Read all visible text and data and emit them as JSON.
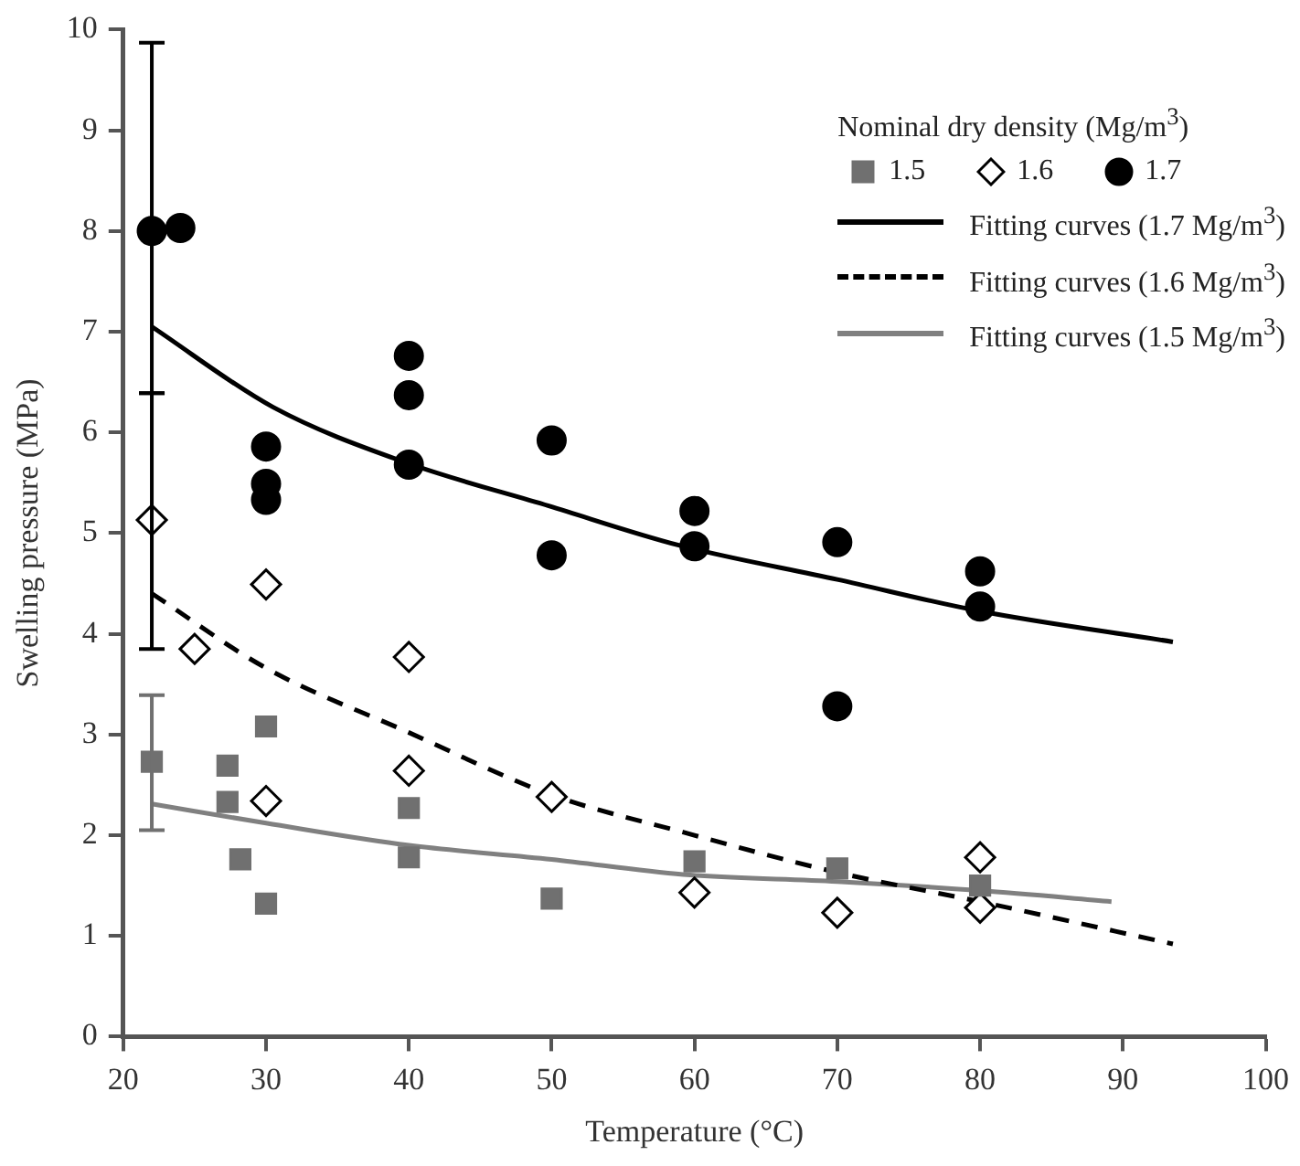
{
  "chart_data": {
    "type": "scatter",
    "xlabel": "Temperature (°C)",
    "ylabel": "Swelling pressure (MPa)",
    "legend_title": "Nominal dry density (Mg/m$^{3}$)",
    "legend": "top right",
    "grid": false,
    "xlim": [
      20,
      100
    ],
    "xticks": [
      20,
      30,
      40,
      50,
      60,
      70,
      80,
      90,
      100
    ],
    "ylim": [
      0,
      10
    ],
    "yticks": [
      0,
      1,
      2,
      3,
      4,
      5,
      6,
      7,
      8,
      9,
      10
    ],
    "series": [
      {
        "name": "1.5",
        "marker": "square",
        "color": "#707070",
        "x": [
          22,
          27.3,
          27.3,
          28.2,
          30,
          30,
          40,
          40,
          50,
          60,
          70,
          80
        ],
        "values": [
          2.73,
          2.69,
          2.33,
          1.76,
          3.08,
          1.32,
          2.27,
          1.78,
          1.37,
          1.74,
          1.67,
          1.5
        ],
        "errors": [
          [
            2.05,
            3.39
          ],
          null,
          null,
          null,
          null,
          null,
          null,
          null,
          null,
          null,
          null,
          null
        ]
      },
      {
        "name": "1.6",
        "marker": "diamond",
        "color": "#000000",
        "x": [
          22,
          25,
          30,
          30,
          40,
          40,
          50,
          60,
          70,
          80,
          80
        ],
        "values": [
          5.13,
          3.85,
          4.49,
          2.34,
          3.77,
          2.64,
          2.38,
          1.43,
          1.23,
          1.78,
          1.28
        ],
        "errors": [
          [
            3.85,
            6.39
          ],
          null,
          null,
          null,
          null,
          null,
          null,
          null,
          null,
          null,
          null
        ]
      },
      {
        "name": "1.7",
        "marker": "circle",
        "color": "#000000",
        "x": [
          22,
          24,
          30,
          30,
          30,
          40,
          40,
          40,
          50,
          50,
          60,
          60,
          70,
          70,
          80,
          80
        ],
        "values": [
          8.0,
          8.03,
          5.86,
          5.49,
          5.33,
          6.76,
          6.37,
          5.68,
          5.92,
          4.78,
          5.22,
          4.87,
          4.91,
          3.28,
          4.62,
          4.27
        ],
        "errors": [
          [
            6.39,
            9.87
          ],
          null,
          null,
          null,
          null,
          null,
          null,
          null,
          null,
          null,
          null,
          null,
          null,
          null,
          null,
          null
        ]
      },
      {
        "name": "Fitting curves (1.7 Mg/m$^{3}$)",
        "type": "line",
        "line_style": "solid",
        "color": "#000000",
        "x": [
          22,
          30.5,
          39.8,
          49.8,
          58.9,
          70,
          79.8,
          93.5
        ],
        "values": [
          7.05,
          6.25,
          5.7,
          5.27,
          4.88,
          4.54,
          4.23,
          3.92
        ]
      },
      {
        "name": "Fitting curves (1.6 Mg/m$^{3}$)",
        "type": "line",
        "line_style": "dashed",
        "color": "#000000",
        "x": [
          22,
          30,
          40,
          50,
          59.2,
          70,
          80,
          93.5
        ],
        "values": [
          4.4,
          3.66,
          3.02,
          2.4,
          2.03,
          1.63,
          1.34,
          0.92
        ]
      },
      {
        "name": "Fitting curves (1.5 Mg/m$^{3}$)",
        "type": "line",
        "line_style": "solid",
        "color": "#808080",
        "x": [
          22,
          30,
          40,
          50,
          59.2,
          70,
          80,
          89.2
        ],
        "values": [
          2.31,
          2.12,
          1.9,
          1.76,
          1.61,
          1.54,
          1.45,
          1.34
        ]
      }
    ]
  }
}
